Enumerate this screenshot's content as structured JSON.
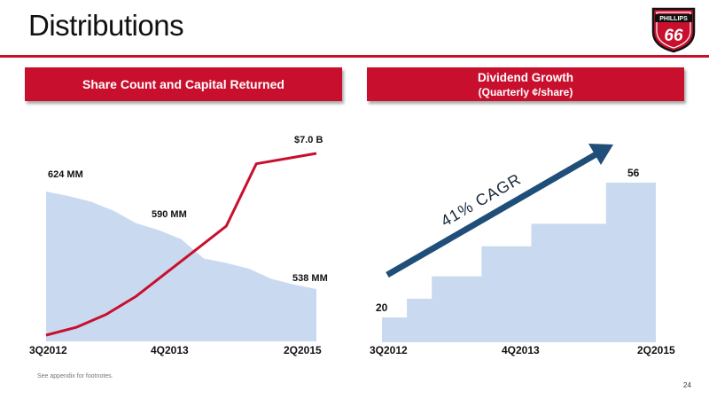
{
  "header": {
    "title": "Distributions",
    "logo_top": "PHILLIPS",
    "logo_number": "66"
  },
  "colors": {
    "brand_red": "#c8102e",
    "area_fill": "#c9daf0",
    "arrow": "#1f4e79"
  },
  "footer": {
    "footnote": "See appendix for footnotes.",
    "page_number": "24"
  },
  "chart_data": [
    {
      "type": "area",
      "title": "Share Count and Capital Returned",
      "x_labels": [
        "3Q2012",
        "4Q2013",
        "2Q2015"
      ],
      "series": [
        {
          "kind": "area",
          "unit": "MM",
          "values": [
            624,
            620,
            615,
            607,
            596,
            590,
            582,
            565,
            561,
            556,
            547,
            542,
            538
          ],
          "labels": [
            "624 MM",
            "590 MM",
            "538 MM"
          ]
        },
        {
          "kind": "line",
          "unit": "$B",
          "values": [
            0.0,
            0.3,
            0.8,
            1.5,
            2.4,
            3.3,
            4.2,
            6.6,
            6.8,
            7.0
          ],
          "labels": [
            "$7.0 B"
          ]
        }
      ]
    },
    {
      "type": "area",
      "title": "Dividend Growth",
      "subtitle": "(Quarterly ¢/share)",
      "annotation": "41% CAGR",
      "x_labels": [
        "3Q2012",
        "4Q2013",
        "2Q2015"
      ],
      "series": [
        {
          "kind": "step",
          "unit": "¢/share",
          "values": [
            20,
            25,
            31,
            31,
            39,
            39,
            45,
            45,
            45,
            56,
            56
          ],
          "labels": [
            "20",
            "56"
          ]
        }
      ]
    }
  ]
}
